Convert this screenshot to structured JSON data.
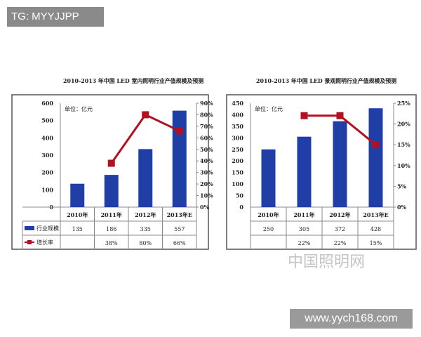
{
  "overlay": {
    "tag": "TG: MYYJJPP",
    "site": "www.yych168.com",
    "watermark": "中国照明网"
  },
  "colors": {
    "bar": "#1f3fa6",
    "line": "#b01020",
    "frame": "#555555"
  },
  "chart_data": [
    {
      "type": "bar+line",
      "title": "2010-2013 年中国 LED 室内照明行业产值规模及预测",
      "unit_label": "单位：亿元",
      "categories": [
        "2010年",
        "2011年",
        "2012年",
        "2013年E"
      ],
      "ylim": [
        0,
        600
      ],
      "yticks": [
        0,
        100,
        200,
        300,
        400,
        500,
        600
      ],
      "y2lim": [
        0,
        90
      ],
      "y2ticks": [
        "0%",
        "10%",
        "20%",
        "30%",
        "40%",
        "50%",
        "60%",
        "70%",
        "80%",
        "90%"
      ],
      "series": [
        {
          "name": "行业规模",
          "type": "bar",
          "values": [
            135,
            186,
            335,
            557
          ],
          "labels": [
            "135",
            "186",
            "335",
            "557"
          ]
        },
        {
          "name": "增长率",
          "type": "line",
          "axis": "right",
          "values": [
            null,
            38,
            80,
            66
          ],
          "labels": [
            "",
            "38%",
            "80%",
            "66%"
          ]
        }
      ],
      "grid": false
    },
    {
      "type": "bar+line",
      "title": "2010-2013 年中国 LED 景观照明行业产值规模及预测",
      "unit_label": "单位：亿元",
      "categories": [
        "2010年",
        "2011年",
        "2012年",
        "2013年E"
      ],
      "ylim": [
        0,
        450
      ],
      "yticks": [
        0,
        50,
        100,
        150,
        200,
        250,
        300,
        350,
        400,
        450
      ],
      "y2lim": [
        0,
        25
      ],
      "y2ticks": [
        "0%",
        "5%",
        "10%",
        "15%",
        "20%",
        "25%"
      ],
      "series": [
        {
          "name": "",
          "type": "bar",
          "values": [
            250,
            305,
            372,
            428
          ],
          "labels": [
            "250",
            "305",
            "372",
            "428"
          ]
        },
        {
          "name": "",
          "type": "line",
          "axis": "right",
          "values": [
            null,
            22,
            22,
            15
          ],
          "labels": [
            "",
            "22%",
            "22%",
            "15%"
          ]
        }
      ],
      "grid": false
    }
  ]
}
